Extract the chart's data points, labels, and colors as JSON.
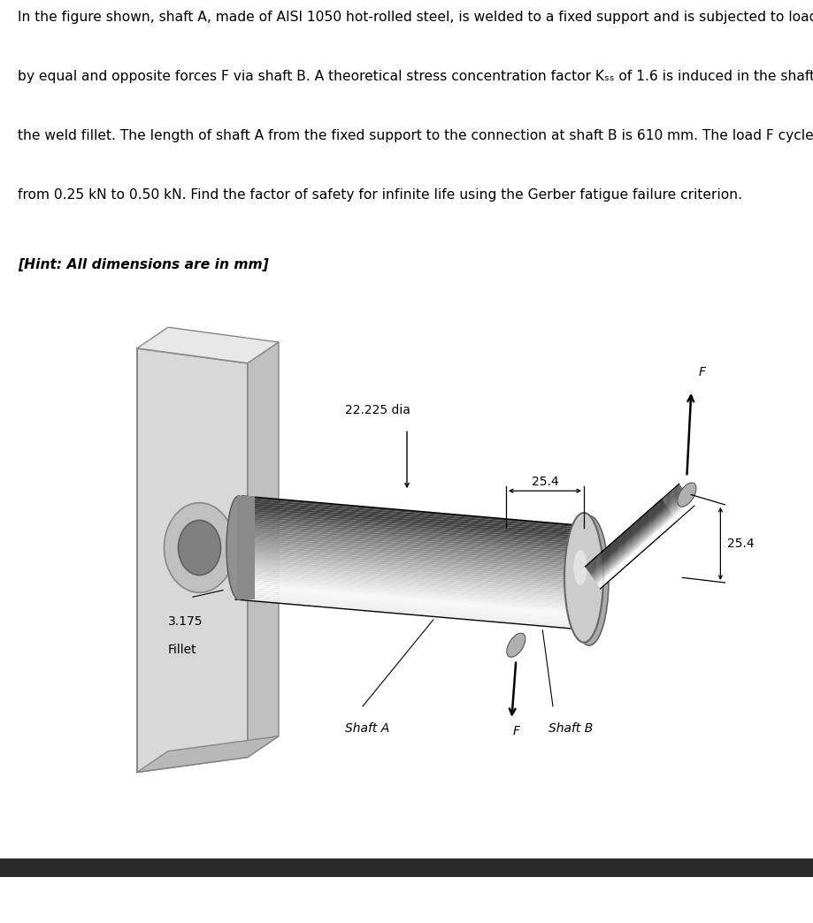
{
  "bg_color": "#ffffff",
  "text_color": "#000000",
  "line1": "In the figure shown, shaft A, made of AISI 1050 hot-rolled steel, is welded to a fixed support and is subjected to loading",
  "line2": "by equal and opposite forces F via shaft B. A theoretical stress concentration factor Kₛₛ of 1.6 is induced in the shaft by",
  "line3": "the weld fillet. The length of shaft A from the fixed support to the connection at shaft B is 610 mm. The load F cycles",
  "line4": "from 0.25 kN to 0.50 kN. Find the factor of safety for infinite life using the Gerber fatigue failure criterion.",
  "hint": "[Hint: All dimensions are in mm]",
  "label_dia": "22.225 dia",
  "label_25_4_mid": "25.4",
  "label_25_4_top": "25.4",
  "label_fillet_top": "3.175",
  "label_fillet_bot": "Fillet",
  "label_shaftA": "Shaft A",
  "label_shaftB": "Shaft B",
  "label_F": "F",
  "fs_body": 11.2,
  "fs_hint": 11.2,
  "fs_dim": 10.0,
  "fs_label": 10.0,
  "fs_F": 10.0
}
